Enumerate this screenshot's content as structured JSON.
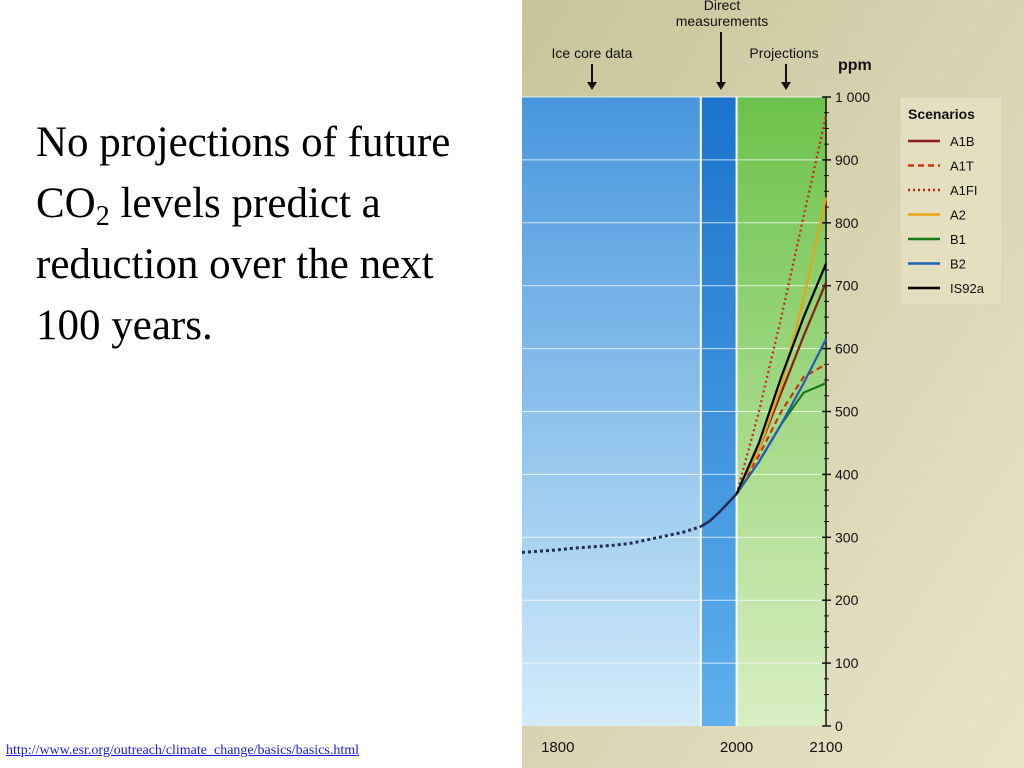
{
  "slide": {
    "text_before": "No projections of future CO",
    "text_sub": "2",
    "text_after": " levels predict a reduction over the next 100 years.",
    "source_link": "http://www.esr.org/outreach/climate_change/basics/basics.html"
  },
  "chart_data": {
    "type": "line",
    "ylabel": "ppm",
    "ylim": [
      0,
      1000
    ],
    "xlim": [
      1760,
      2100
    ],
    "y_ticks": [
      "0",
      "100",
      "200",
      "300",
      "400",
      "500",
      "600",
      "700",
      "800",
      "900",
      "1 000"
    ],
    "x_ticks": [
      "1800",
      "2000",
      "2100"
    ],
    "regions": [
      {
        "label": "Ice core data",
        "from": 1760,
        "to": 1960,
        "color": "#4ea0e2"
      },
      {
        "label": "Direct measurements",
        "from": 1960,
        "to": 2000,
        "color": "#1f7bd0"
      },
      {
        "label": "Projections",
        "from": 2000,
        "to": 2100,
        "color": "#7ccf5a"
      }
    ],
    "legend": {
      "title": "Scenarios",
      "placement": "right"
    },
    "historical": {
      "x": [
        1760,
        1780,
        1800,
        1820,
        1840,
        1860,
        1880,
        1900,
        1920,
        1940,
        1960,
        1970,
        1980,
        1990,
        2000
      ],
      "y": [
        276,
        278,
        280,
        283,
        285,
        287,
        290,
        296,
        302,
        308,
        317,
        326,
        339,
        354,
        369
      ],
      "color": "#222a55"
    },
    "series": [
      {
        "name": "A1B",
        "color": "#8b1a1a",
        "dash": "solid",
        "x": [
          2000,
          2025,
          2050,
          2075,
          2100
        ],
        "y": [
          369,
          440,
          530,
          620,
          705
        ]
      },
      {
        "name": "A1T",
        "color": "#cc3311",
        "dash": "dashed",
        "x": [
          2000,
          2025,
          2050,
          2075,
          2100
        ],
        "y": [
          369,
          430,
          500,
          555,
          575
        ]
      },
      {
        "name": "A1FI",
        "color": "#cc1f1f",
        "dash": "dotted",
        "x": [
          2000,
          2025,
          2050,
          2075,
          2100
        ],
        "y": [
          369,
          500,
          650,
          810,
          970
        ]
      },
      {
        "name": "A2",
        "color": "#e8a317",
        "dash": "solid",
        "x": [
          2000,
          2025,
          2050,
          2075,
          2100
        ],
        "y": [
          369,
          440,
          540,
          680,
          840
        ]
      },
      {
        "name": "B1",
        "color": "#1a7a1a",
        "dash": "solid",
        "x": [
          2000,
          2025,
          2050,
          2075,
          2100
        ],
        "y": [
          369,
          420,
          480,
          530,
          545
        ]
      },
      {
        "name": "B2",
        "color": "#1f5fb5",
        "dash": "solid",
        "x": [
          2000,
          2025,
          2050,
          2075,
          2100
        ],
        "y": [
          369,
          420,
          480,
          545,
          615
        ]
      },
      {
        "name": "IS92a",
        "color": "#000000",
        "dash": "solid",
        "x": [
          2000,
          2025,
          2050,
          2075,
          2100
        ],
        "y": [
          369,
          450,
          555,
          650,
          735
        ]
      }
    ]
  }
}
